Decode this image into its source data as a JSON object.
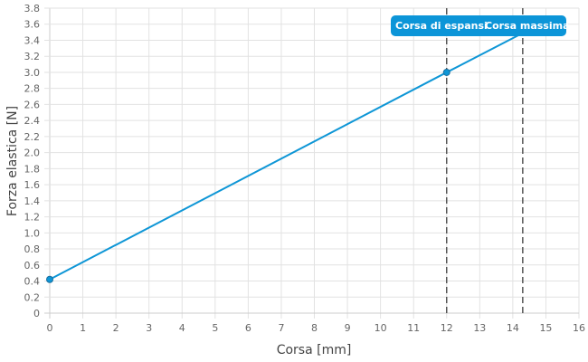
{
  "chart_data": {
    "type": "line",
    "xlabel": "Corsa [mm]",
    "ylabel": "Forza elastica [N]",
    "xlim": [
      0,
      16
    ],
    "ylim": [
      0,
      3.8
    ],
    "x_ticks": [
      "0",
      "1",
      "2",
      "3",
      "4",
      "5",
      "6",
      "7",
      "8",
      "9",
      "10",
      "11",
      "12",
      "13",
      "14",
      "15",
      "16"
    ],
    "y_ticks": [
      "0",
      "0.2",
      "0.4",
      "0.6",
      "0.8",
      "1.0",
      "1.2",
      "1.4",
      "1.6",
      "1.8",
      "2.0",
      "2.2",
      "2.4",
      "2.6",
      "2.8",
      "3.0",
      "3.2",
      "3.4",
      "3.6",
      "3.8"
    ],
    "grid": true,
    "series": [
      {
        "x": [
          0,
          12,
          14.3
        ],
        "y": [
          0.42,
          3.0,
          3.49
        ],
        "color": "#0e96d6",
        "markers_at": [
          0,
          12
        ]
      }
    ],
    "vertical_lines": [
      {
        "x": 12,
        "label": "Corsa di espansi"
      },
      {
        "x": 14.3,
        "label": "Corsa massima"
      }
    ],
    "annotation_color": "#0c95d8"
  }
}
